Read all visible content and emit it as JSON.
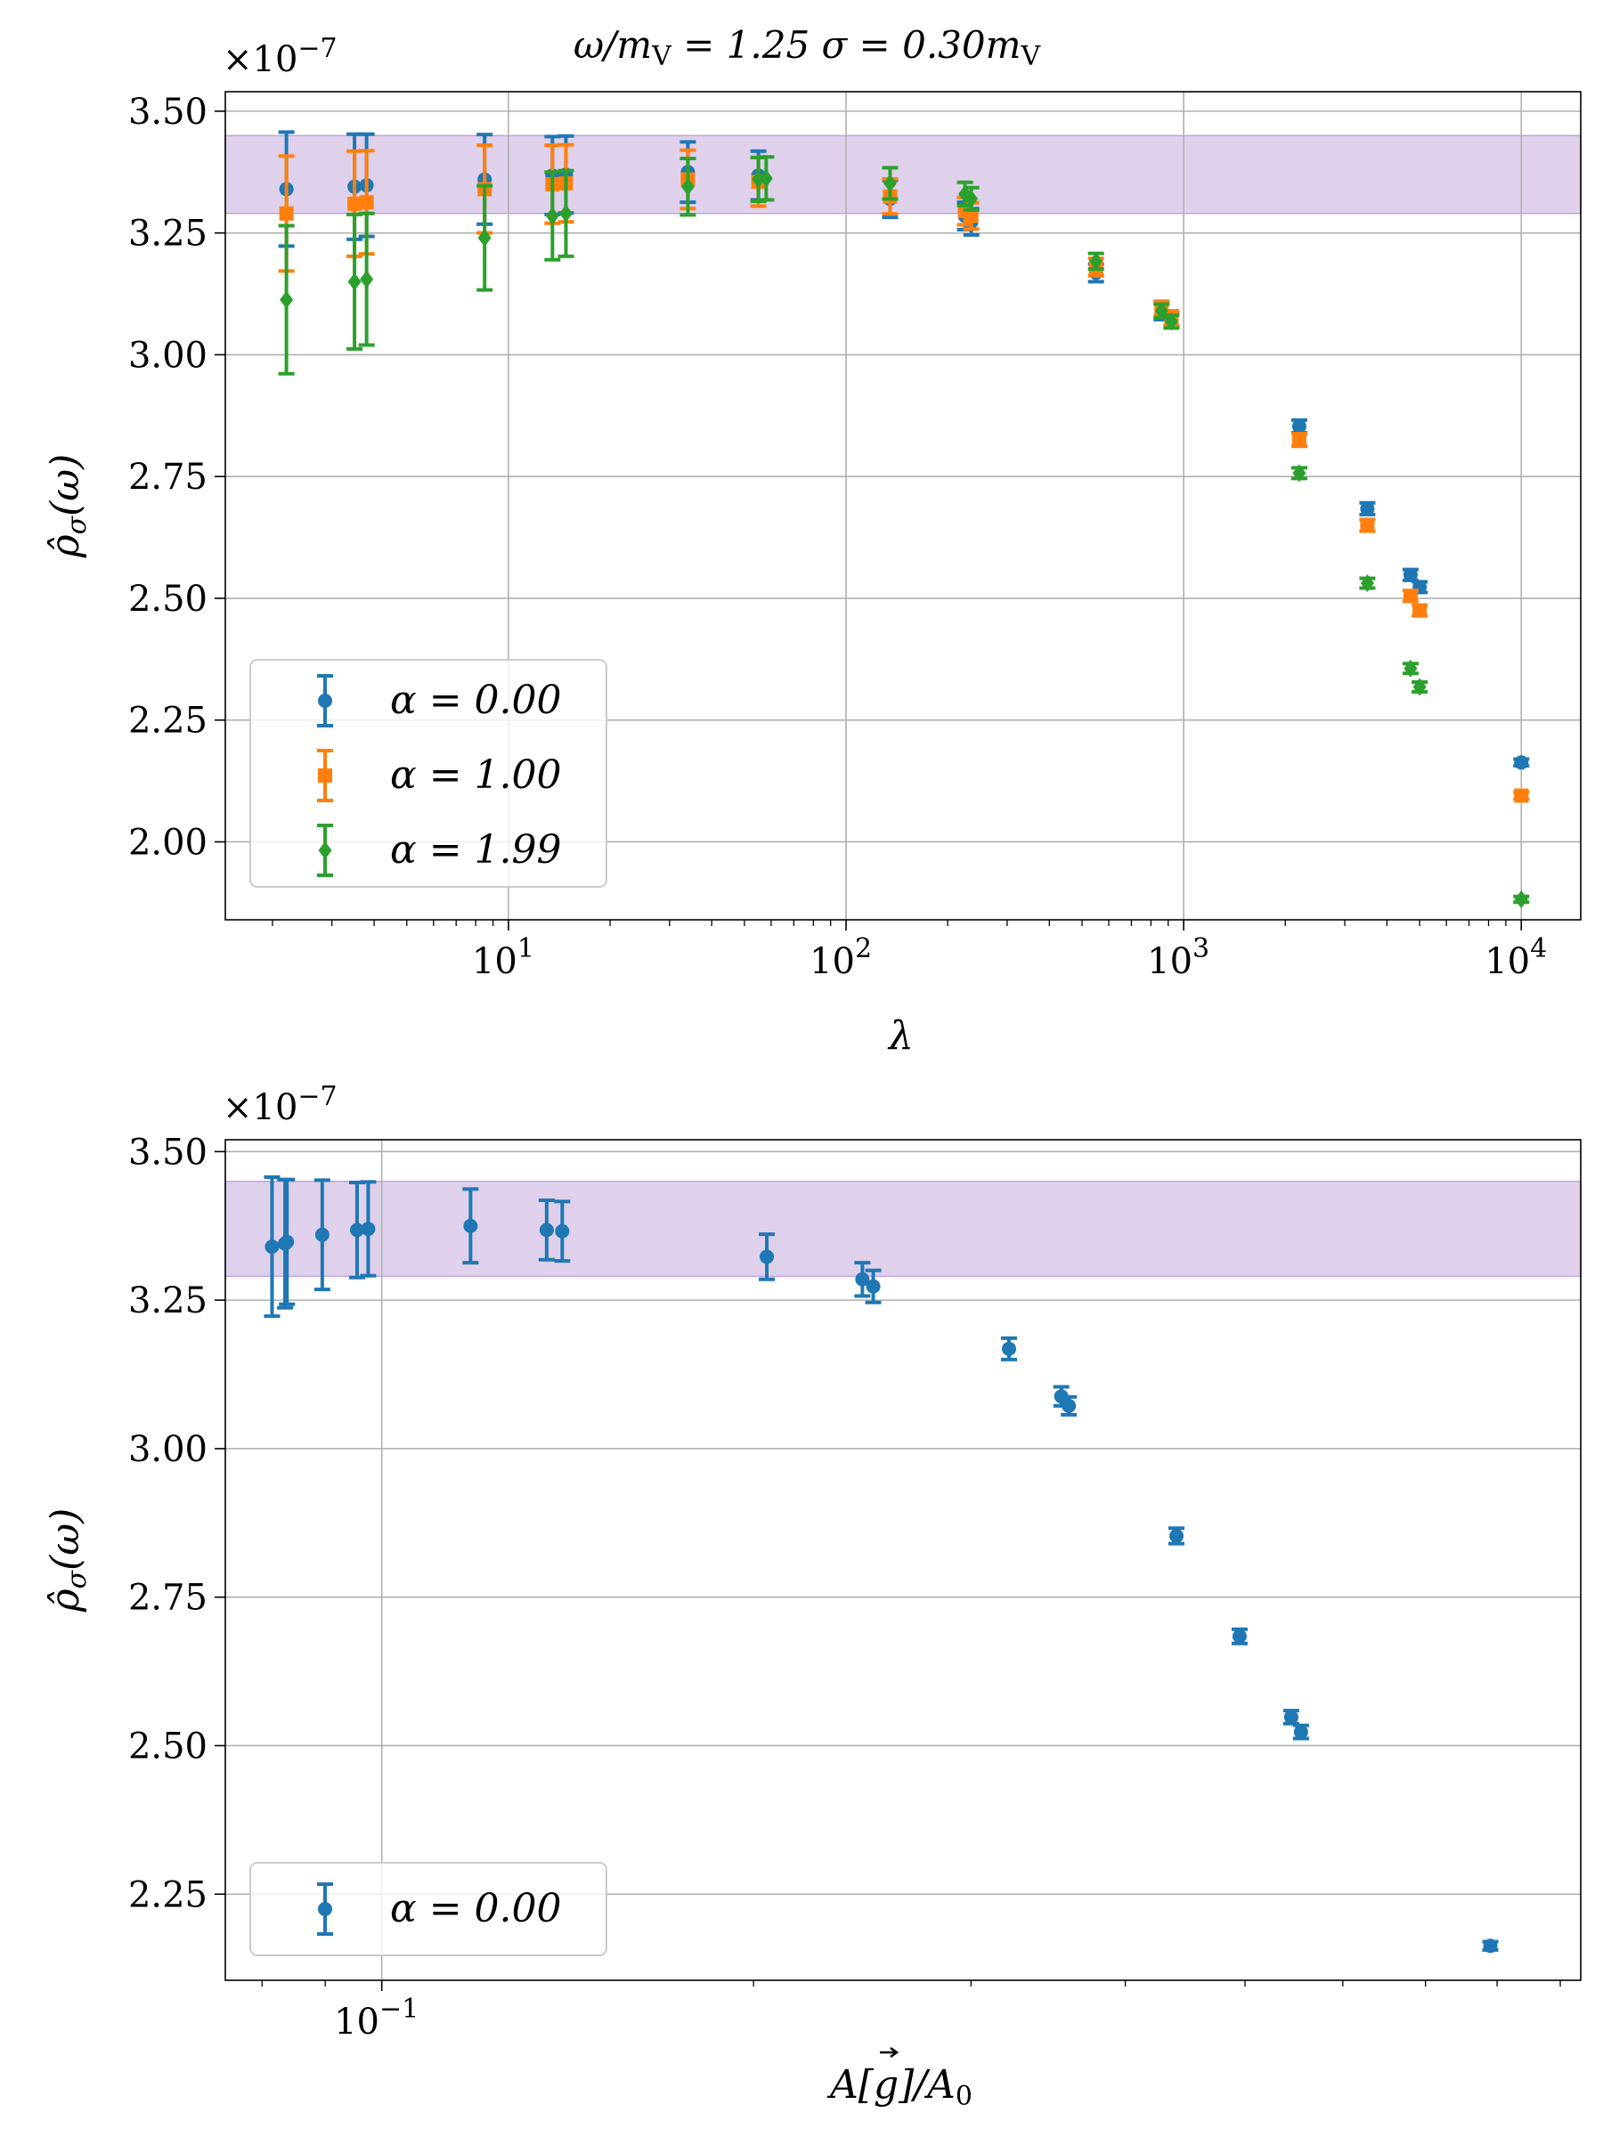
{
  "chart_data": [
    {
      "type": "scatter",
      "title": "ω/m_V = 1.25 σ = 0.30m_V",
      "title_parts": {
        "lhs": "ω/m",
        "sub1": "V",
        "mid": " = 1.25 σ = 0.30m",
        "sub2": "V"
      },
      "offset_label": {
        "base": "×10",
        "exp": "−7"
      },
      "xlabel": "λ",
      "ylabel": {
        "main": "ρ̂",
        "sub": "σ",
        "arg": "(ω)"
      },
      "xscale": "log",
      "xlim": [
        1.45,
        15000
      ],
      "ylim": [
        1.84,
        3.54
      ],
      "x_ticks": [
        {
          "value": 10,
          "base": "10",
          "exp": "1"
        },
        {
          "value": 100,
          "base": "10",
          "exp": "2"
        },
        {
          "value": 1000,
          "base": "10",
          "exp": "3"
        },
        {
          "value": 10000,
          "base": "10",
          "exp": "4"
        }
      ],
      "y_ticks": [
        {
          "value": 2.0,
          "label": "2.00"
        },
        {
          "value": 2.25,
          "label": "2.25"
        },
        {
          "value": 2.5,
          "label": "2.50"
        },
        {
          "value": 2.75,
          "label": "2.75"
        },
        {
          "value": 3.0,
          "label": "3.00"
        },
        {
          "value": 3.25,
          "label": "3.25"
        },
        {
          "value": 3.5,
          "label": "3.50"
        }
      ],
      "grid": true,
      "band": {
        "y0": 3.29,
        "y1": 3.45,
        "color": "#9467bd"
      },
      "legend_position": "lower-left",
      "series": [
        {
          "name": "α = 0.00",
          "color": "#1f77b4",
          "marker": "circle",
          "x": [
            2.2,
            3.5,
            3.8,
            8.5,
            13.5,
            14.8,
            34,
            55,
            135,
            225,
            235,
            550,
            860,
            920,
            2200,
            3500,
            4700,
            5000,
            10000
          ],
          "y": [
            3.34,
            3.345,
            3.348,
            3.36,
            3.368,
            3.37,
            3.375,
            3.368,
            3.32,
            3.285,
            3.273,
            3.168,
            3.088,
            3.072,
            2.853,
            2.684,
            2.548,
            2.523,
            2.163
          ],
          "err": [
            0.117,
            0.108,
            0.105,
            0.092,
            0.08,
            0.079,
            0.062,
            0.05,
            0.038,
            0.028,
            0.027,
            0.018,
            0.016,
            0.015,
            0.013,
            0.012,
            0.011,
            0.011,
            0.007
          ]
        },
        {
          "name": "α = 1.00",
          "color": "#ff7f0e",
          "marker": "square",
          "x": [
            2.2,
            3.5,
            3.8,
            8.5,
            13.5,
            14.8,
            34,
            55,
            135,
            225,
            235,
            550,
            860,
            920,
            2200,
            3500,
            4700,
            5000,
            10000
          ],
          "y": [
            3.29,
            3.31,
            3.313,
            3.34,
            3.35,
            3.352,
            3.36,
            3.355,
            3.325,
            3.295,
            3.285,
            3.18,
            3.095,
            3.075,
            2.825,
            2.65,
            2.505,
            2.475,
            2.095
          ],
          "err": [
            0.118,
            0.108,
            0.106,
            0.09,
            0.08,
            0.079,
            0.06,
            0.05,
            0.036,
            0.028,
            0.027,
            0.018,
            0.015,
            0.015,
            0.013,
            0.012,
            0.011,
            0.011,
            0.007
          ]
        },
        {
          "name": "α = 1.99",
          "color": "#2ca02c",
          "marker": "diamond",
          "x": [
            2.2,
            3.5,
            3.8,
            8.5,
            13.5,
            14.8,
            34,
            55,
            58,
            135,
            225,
            235,
            550,
            860,
            920,
            2200,
            3500,
            4700,
            5000,
            10000
          ],
          "y": [
            3.113,
            3.15,
            3.155,
            3.24,
            3.285,
            3.29,
            3.345,
            3.36,
            3.362,
            3.352,
            3.33,
            3.32,
            3.192,
            3.09,
            3.068,
            2.757,
            2.531,
            2.356,
            2.318,
            1.882
          ],
          "err": [
            0.152,
            0.138,
            0.135,
            0.107,
            0.09,
            0.088,
            0.058,
            0.045,
            0.044,
            0.032,
            0.024,
            0.023,
            0.016,
            0.014,
            0.013,
            0.011,
            0.01,
            0.01,
            0.01,
            0.006
          ]
        }
      ]
    },
    {
      "type": "scatter",
      "offset_label": {
        "base": "×10",
        "exp": "−7"
      },
      "xlabel": "A[g⃗]/A₀",
      "xlabel_parts": {
        "a": "A[",
        "g": "g",
        "b": "]/A",
        "sub": "0"
      },
      "ylabel": {
        "main": "ρ̂",
        "sub": "σ",
        "arg": "(ω)"
      },
      "xscale": "log",
      "xlim": [
        0.0747,
        0.935
      ],
      "ylim": [
        2.105,
        3.52
      ],
      "x_ticks": [
        {
          "value": 0.1,
          "base": "10",
          "exp": "−1"
        }
      ],
      "x_minor_ticks": [
        0.08,
        0.09,
        0.2,
        0.3,
        0.4,
        0.5,
        0.6,
        0.7,
        0.8,
        0.9
      ],
      "y_ticks": [
        {
          "value": 2.25,
          "label": "2.25"
        },
        {
          "value": 2.5,
          "label": "2.50"
        },
        {
          "value": 2.75,
          "label": "2.75"
        },
        {
          "value": 3.0,
          "label": "3.00"
        },
        {
          "value": 3.25,
          "label": "3.25"
        },
        {
          "value": 3.5,
          "label": "3.50"
        }
      ],
      "grid": true,
      "band": {
        "y0": 3.29,
        "y1": 3.45,
        "color": "#9467bd"
      },
      "legend_position": "lower-left",
      "series": [
        {
          "name": "α = 0.00",
          "color": "#1f77b4",
          "marker": "circle",
          "x": [
            0.0815,
            0.0835,
            0.0838,
            0.0895,
            0.0955,
            0.0975,
            0.118,
            0.136,
            0.14,
            0.205,
            0.245,
            0.25,
            0.322,
            0.355,
            0.36,
            0.44,
            0.495,
            0.545,
            0.555,
            0.79
          ],
          "y": [
            3.34,
            3.345,
            3.348,
            3.36,
            3.368,
            3.37,
            3.375,
            3.368,
            3.366,
            3.323,
            3.285,
            3.273,
            3.168,
            3.088,
            3.072,
            2.853,
            2.684,
            2.548,
            2.523,
            2.163
          ],
          "err": [
            0.117,
            0.108,
            0.105,
            0.092,
            0.08,
            0.079,
            0.062,
            0.05,
            0.05,
            0.038,
            0.028,
            0.027,
            0.018,
            0.016,
            0.015,
            0.013,
            0.012,
            0.011,
            0.011,
            0.007
          ]
        }
      ]
    }
  ]
}
